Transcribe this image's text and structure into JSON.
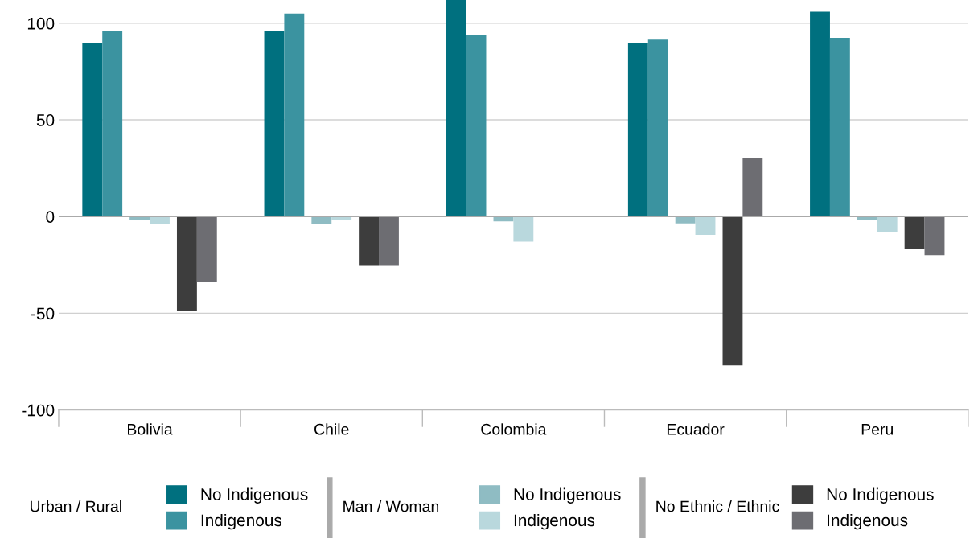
{
  "chart_data": {
    "type": "bar",
    "categories": [
      "Bolivia",
      "Chile",
      "Colombia",
      "Ecuador",
      "Peru"
    ],
    "series": [
      {
        "name": "No Indigenous",
        "color": "#00707f",
        "values": [
          90,
          96,
          112,
          89.5,
          106
        ]
      },
      {
        "name": "Indigenous",
        "color": "#3b93a0",
        "values": [
          96,
          105,
          94,
          91.5,
          92.5
        ]
      },
      {
        "name": "No Indigenous",
        "color": "#8fbcc3",
        "values": [
          -2,
          -4,
          -2.5,
          -3.5,
          -2
        ]
      },
      {
        "name": "Indigenous",
        "color": "#b9d8dd",
        "values": [
          -4,
          -2,
          -13,
          -9.5,
          -8
        ]
      },
      {
        "name": "No Indigenous",
        "color": "#3d3d3d",
        "values": [
          -49,
          -25.5,
          null,
          -77,
          -17
        ]
      },
      {
        "name": "Indigenous",
        "color": "#6d6d72",
        "values": [
          -34,
          -25.5,
          null,
          30.5,
          -20
        ]
      }
    ],
    "annotations": [
      "Urban / Rural",
      "Man / Woman",
      "No Ethnic / Ethnic"
    ],
    "ylim": [
      -100,
      112
    ],
    "yticks": [
      -100,
      -50,
      0,
      50,
      100
    ],
    "grid": "y",
    "legend": "bottom"
  }
}
